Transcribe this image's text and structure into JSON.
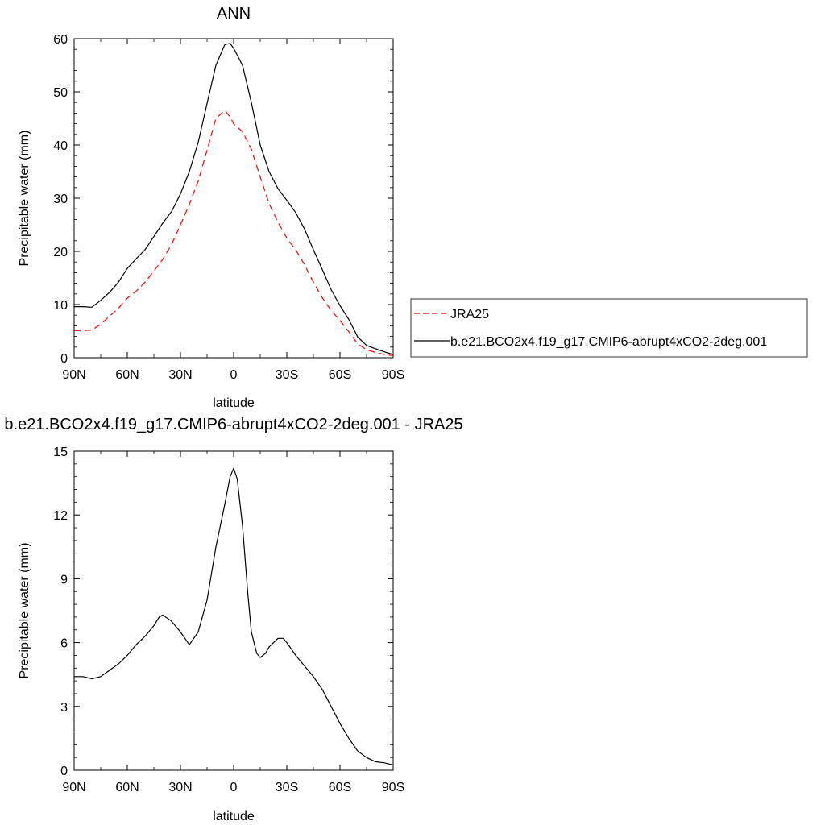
{
  "chart_data": [
    {
      "type": "line",
      "title": "ANN",
      "xlabel": "latitude",
      "ylabel": "Precipitable water (mm)",
      "xlim": [
        90,
        -90
      ],
      "ylim": [
        0,
        60
      ],
      "xticks": [
        90,
        60,
        30,
        0,
        -30,
        -60,
        -90
      ],
      "xtick_labels": [
        "90N",
        "60N",
        "30N",
        "0",
        "30S",
        "60S",
        "90S"
      ],
      "yticks": [
        0,
        10,
        20,
        30,
        40,
        50,
        60
      ],
      "ytick_labels": [
        "0",
        "10",
        "20",
        "30",
        "40",
        "50",
        "60"
      ],
      "legend_position": "right",
      "series": [
        {
          "name": "JRA25",
          "color": "#ff0000",
          "dash": "dashed",
          "x": [
            90,
            85,
            80,
            75,
            70,
            65,
            60,
            55,
            50,
            45,
            40,
            35,
            30,
            25,
            20,
            15,
            10,
            5,
            2,
            0,
            -5,
            -10,
            -15,
            -20,
            -25,
            -30,
            -35,
            -40,
            -45,
            -50,
            -55,
            -60,
            -65,
            -70,
            -75,
            -80,
            -85,
            -90
          ],
          "y": [
            5.1,
            5.1,
            5.2,
            6.3,
            7.8,
            9.3,
            11.2,
            12.5,
            14.2,
            16.3,
            18.5,
            21.3,
            25.0,
            28.8,
            33.2,
            39.0,
            45.0,
            46.5,
            45.3,
            44.0,
            42.5,
            39.2,
            34.0,
            29.0,
            25.5,
            22.5,
            20.3,
            17.5,
            14.2,
            11.3,
            8.9,
            7.0,
            4.9,
            2.6,
            1.5,
            1.0,
            0.6,
            0.4
          ]
        },
        {
          "name": "b.e21.BCO2x4.f19_g17.CMIP6-abrupt4xCO2-2deg.001",
          "color": "#000000",
          "dash": "solid",
          "x": [
            90,
            85,
            80,
            75,
            70,
            65,
            60,
            55,
            50,
            45,
            40,
            35,
            30,
            25,
            20,
            15,
            10,
            5,
            2,
            0,
            -5,
            -10,
            -15,
            -20,
            -25,
            -30,
            -35,
            -40,
            -45,
            -50,
            -55,
            -60,
            -65,
            -70,
            -75,
            -80,
            -85,
            -90
          ],
          "y": [
            9.6,
            9.6,
            9.5,
            10.8,
            12.3,
            14.2,
            16.8,
            18.6,
            20.3,
            22.8,
            25.3,
            27.5,
            30.8,
            35.0,
            40.5,
            47.8,
            55.0,
            58.9,
            59.1,
            58.2,
            55.0,
            48.0,
            40.0,
            35.0,
            31.8,
            29.6,
            27.3,
            24.2,
            20.3,
            16.6,
            12.8,
            9.8,
            7.2,
            3.9,
            2.3,
            1.7,
            1.1,
            0.6
          ]
        }
      ]
    },
    {
      "type": "line",
      "title": "b.e21.BCO2x4.f19_g17.CMIP6-abrupt4xCO2-2deg.001 - JRA25",
      "xlabel": "latitude",
      "ylabel": "Precipitable water (mm)",
      "xlim": [
        90,
        -90
      ],
      "ylim": [
        0,
        15
      ],
      "xticks": [
        90,
        60,
        30,
        0,
        -30,
        -60,
        -90
      ],
      "xtick_labels": [
        "90N",
        "60N",
        "30N",
        "0",
        "30S",
        "60S",
        "90S"
      ],
      "yticks": [
        0,
        3,
        6,
        9,
        12,
        15
      ],
      "ytick_labels": [
        "0",
        "3",
        "6",
        "9",
        "12",
        "15"
      ],
      "series": [
        {
          "color": "#000000",
          "dash": "solid",
          "x": [
            90,
            85,
            80,
            75,
            70,
            65,
            60,
            55,
            50,
            45,
            42,
            40,
            35,
            30,
            25,
            20,
            15,
            10,
            5,
            2,
            0,
            -2,
            -5,
            -8,
            -10,
            -13,
            -15,
            -18,
            -20,
            -25,
            -28,
            -30,
            -35,
            -40,
            -45,
            -50,
            -55,
            -60,
            -65,
            -70,
            -75,
            -80,
            -85,
            -90
          ],
          "y": [
            4.4,
            4.4,
            4.3,
            4.4,
            4.7,
            5.0,
            5.4,
            5.9,
            6.3,
            6.8,
            7.2,
            7.3,
            7.0,
            6.5,
            5.9,
            6.5,
            8.0,
            10.5,
            12.5,
            13.8,
            14.2,
            13.7,
            11.5,
            8.3,
            6.5,
            5.5,
            5.3,
            5.5,
            5.8,
            6.2,
            6.2,
            6.0,
            5.4,
            4.9,
            4.4,
            3.8,
            3.0,
            2.2,
            1.5,
            0.9,
            0.6,
            0.4,
            0.35,
            0.25
          ]
        }
      ]
    }
  ]
}
